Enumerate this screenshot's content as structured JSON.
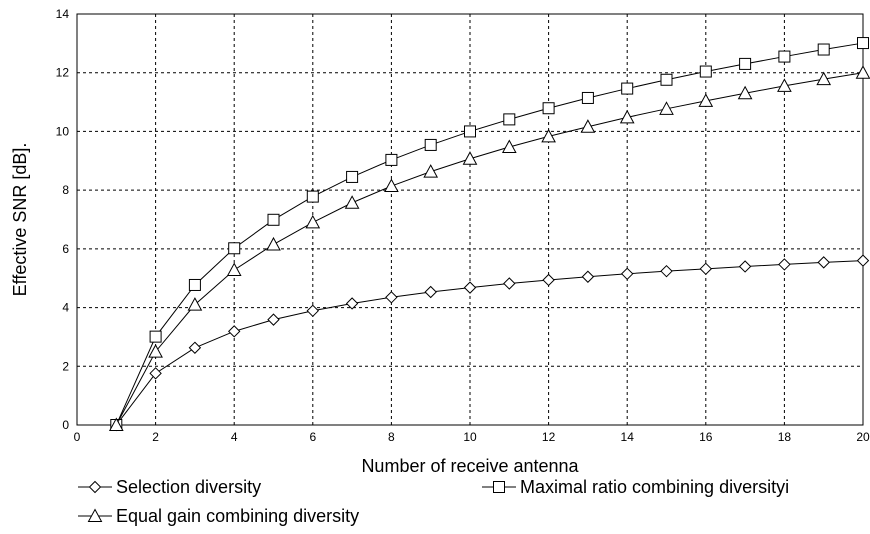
{
  "chart_data": {
    "type": "line",
    "xlabel": "Number of receive antenna",
    "ylabel": "Effective SNR [dB].",
    "xlim": [
      0,
      20
    ],
    "ylim": [
      0,
      14
    ],
    "x_ticks": [
      0,
      2,
      4,
      6,
      8,
      10,
      12,
      14,
      16,
      18,
      20
    ],
    "y_ticks": [
      0,
      2,
      4,
      6,
      8,
      10,
      12,
      14
    ],
    "grid": true,
    "legend_position": "bottom",
    "x": [
      1,
      2,
      3,
      4,
      5,
      6,
      7,
      8,
      9,
      10,
      11,
      12,
      13,
      14,
      15,
      16,
      17,
      18,
      19,
      20
    ],
    "series": [
      {
        "name": "Selection diversity",
        "marker": "diamond",
        "values": [
          0,
          1.76,
          2.63,
          3.19,
          3.59,
          3.89,
          4.14,
          4.35,
          4.53,
          4.68,
          4.82,
          4.94,
          5.05,
          5.15,
          5.24,
          5.32,
          5.4,
          5.47,
          5.54,
          5.6
        ]
      },
      {
        "name": "Maximal ratio combining diversityi",
        "marker": "square",
        "values": [
          0,
          3.01,
          4.77,
          6.02,
          6.99,
          7.78,
          8.45,
          9.03,
          9.54,
          10.0,
          10.41,
          10.79,
          11.14,
          11.46,
          11.76,
          12.04,
          12.3,
          12.55,
          12.79,
          13.01
        ]
      },
      {
        "name": "Equal gain combining diversity",
        "marker": "triangle",
        "values": [
          0,
          2.5,
          4.1,
          5.28,
          6.15,
          6.9,
          7.57,
          8.14,
          8.63,
          9.07,
          9.47,
          9.83,
          10.16,
          10.48,
          10.77,
          11.04,
          11.3,
          11.55,
          11.78,
          12.0
        ]
      }
    ]
  }
}
